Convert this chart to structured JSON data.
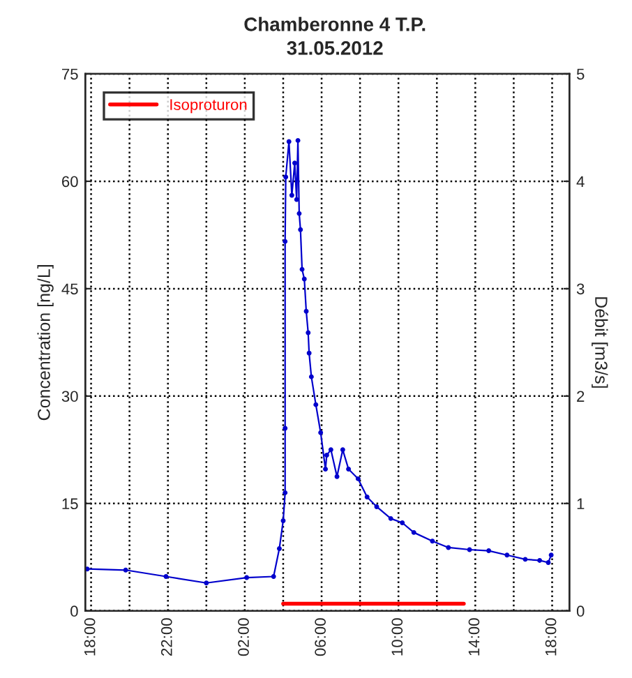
{
  "chart_data": {
    "type": "line",
    "title": "Chamberonne 4 T.P.",
    "subtitle": "31.05.2012",
    "ylabel": "Concentration [ng/L]",
    "y2label": "Débit [m3/s]",
    "xlim": [
      "2012-05-30T17:42",
      "2012-05-31T18:54"
    ],
    "ylim": [
      0,
      75
    ],
    "yticks": [
      0,
      15,
      30,
      45,
      60,
      75
    ],
    "y2lim": [
      0,
      5
    ],
    "y2ticks": [
      0,
      1,
      2,
      3,
      4,
      5
    ],
    "xticks": [
      {
        "value": "2012-05-30T18:00",
        "label": "18:00"
      },
      {
        "value": "2012-05-30T20:00",
        "label": null
      },
      {
        "value": "2012-05-30T22:00",
        "label": "22:00"
      },
      {
        "value": "2012-05-31T00:00",
        "label": null
      },
      {
        "value": "2012-05-31T02:00",
        "label": "02:00"
      },
      {
        "value": "2012-05-31T04:00",
        "label": null
      },
      {
        "value": "2012-05-31T06:00",
        "label": "06:00"
      },
      {
        "value": "2012-05-31T08:00",
        "label": null
      },
      {
        "value": "2012-05-31T10:00",
        "label": "10:00"
      },
      {
        "value": "2012-05-31T12:00",
        "label": null
      },
      {
        "value": "2012-05-31T14:00",
        "label": "14:00"
      },
      {
        "value": "2012-05-31T16:00",
        "label": null
      },
      {
        "value": "2012-05-31T18:00",
        "label": "18:00"
      }
    ],
    "grid": true,
    "legend": "top left",
    "series": [
      {
        "name": "Isoproturon",
        "color": "#ff0000",
        "x": [
          "2012-05-31T04:00",
          "2012-05-31T13:24"
        ],
        "values": [
          1,
          1
        ]
      },
      {
        "color": "#0000cc",
        "axis": "y2",
        "marker": "circle",
        "x": [
          "2012-05-30T17:48",
          "2012-05-30T19:48",
          "2012-05-30T21:54",
          "2012-05-31T00:00",
          "2012-05-31T02:06",
          "2012-05-31T03:30",
          "2012-05-31T03:48",
          "2012-05-31T04:00",
          "2012-05-31T04:06",
          "2012-05-31T04:06",
          "2012-05-31T04:06",
          "2012-05-31T04:08",
          "2012-05-31T04:18",
          "2012-05-31T04:27",
          "2012-05-31T04:36",
          "2012-05-31T04:42",
          "2012-05-31T04:46",
          "2012-05-31T04:50",
          "2012-05-31T04:54",
          "2012-05-31T04:59",
          "2012-05-31T05:06",
          "2012-05-31T05:12",
          "2012-05-31T05:18",
          "2012-05-31T05:21",
          "2012-05-31T05:28",
          "2012-05-31T05:42",
          "2012-05-31T05:57",
          "2012-05-31T06:12",
          "2012-05-31T06:16",
          "2012-05-31T06:29",
          "2012-05-31T06:48",
          "2012-05-31T07:06",
          "2012-05-31T07:24",
          "2012-05-31T07:54",
          "2012-05-31T08:22",
          "2012-05-31T08:52",
          "2012-05-31T09:36",
          "2012-05-31T10:12",
          "2012-05-31T10:48",
          "2012-05-31T11:46",
          "2012-05-31T12:36",
          "2012-05-31T13:42",
          "2012-05-31T14:42",
          "2012-05-31T15:39",
          "2012-05-31T16:36",
          "2012-05-31T17:21",
          "2012-05-31T17:48",
          "2012-05-31T17:57"
        ],
        "values": [
          0.39,
          0.38,
          0.32,
          0.26,
          0.31,
          0.32,
          0.58,
          0.84,
          1.1,
          1.7,
          3.44,
          4.04,
          4.37,
          3.87,
          4.17,
          3.83,
          4.38,
          3.7,
          3.55,
          3.18,
          3.09,
          2.79,
          2.59,
          2.4,
          2.18,
          1.92,
          1.66,
          1.32,
          1.45,
          1.5,
          1.25,
          1.5,
          1.32,
          1.23,
          1.06,
          0.97,
          0.86,
          0.82,
          0.73,
          0.65,
          0.59,
          0.57,
          0.56,
          0.52,
          0.48,
          0.47,
          0.45,
          0.52
        ]
      }
    ]
  }
}
